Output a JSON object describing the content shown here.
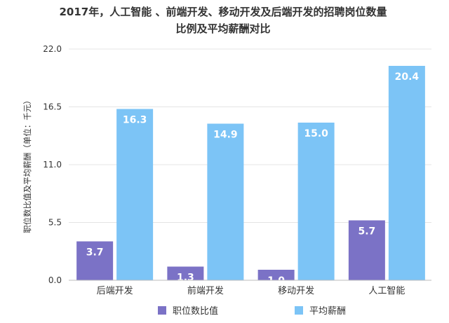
{
  "chart_data": {
    "type": "bar",
    "title": [
      "2017年，人工智能 、前端开发、移动开发及后端开发的招聘岗位数量",
      "比例及平均薪酬对比"
    ],
    "ylabel": "职位数比值及平均薪酬（单位：千元）",
    "xlabel": "",
    "ylim": [
      0,
      22
    ],
    "yticks": [
      "0.0",
      "5.5",
      "11.0",
      "16.5",
      "22.0"
    ],
    "categories": [
      "后端开发",
      "前端开发",
      "移动开发",
      "人工智能"
    ],
    "series": [
      {
        "name": "职位数比值",
        "values": [
          3.7,
          1.3,
          1.0,
          5.7
        ],
        "labels": [
          "3.7",
          "1.3",
          "1.0",
          "5.7"
        ],
        "color": "#7b72c6"
      },
      {
        "name": "平均薪酬",
        "values": [
          16.3,
          14.9,
          15.0,
          20.4
        ],
        "labels": [
          "16.3",
          "14.9",
          "15.0",
          "20.4"
        ],
        "color": "#7cc4f6"
      }
    ],
    "grid": true,
    "legend": "bottom"
  }
}
